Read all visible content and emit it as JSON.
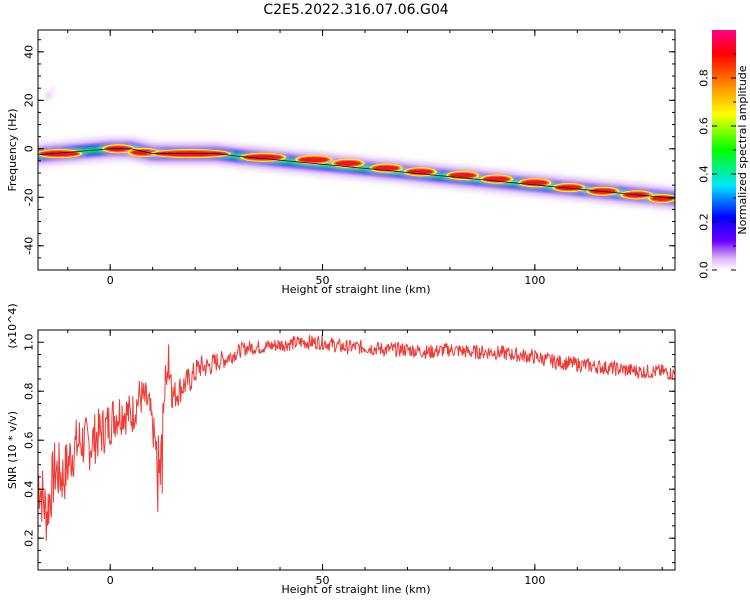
{
  "title": "C2E5.2022.316.07.06.G04",
  "chart_data": [
    {
      "type": "heatmap",
      "xlabel": "Height of straight line (km)",
      "ylabel": "Frequency (Hz)",
      "xlim": [
        -17,
        133
      ],
      "ylim": [
        -50,
        49
      ],
      "xticks": [
        0,
        50,
        100
      ],
      "yticks": [
        -40,
        -20,
        0,
        20,
        40
      ],
      "ridge_line": {
        "x": [
          -17,
          0,
          5,
          10,
          25,
          30,
          133
        ],
        "y": [
          -2.5,
          0,
          0,
          -2,
          -2,
          -3,
          -20.5
        ]
      },
      "spectral_peaks": [
        {
          "x": -12,
          "y": -2,
          "width": 8
        },
        {
          "x": 2,
          "y": 0,
          "width": 5
        },
        {
          "x": 8,
          "y": -1.5,
          "width": 5
        },
        {
          "x": 19,
          "y": -2,
          "width": 16
        },
        {
          "x": 36,
          "y": -3.5,
          "width": 8
        },
        {
          "x": 48,
          "y": -4.5,
          "width": 6
        },
        {
          "x": 56,
          "y": -6,
          "width": 5
        },
        {
          "x": 65,
          "y": -8,
          "width": 5
        },
        {
          "x": 73,
          "y": -9.5,
          "width": 5
        },
        {
          "x": 83,
          "y": -11,
          "width": 5
        },
        {
          "x": 91,
          "y": -12.5,
          "width": 5
        },
        {
          "x": 100,
          "y": -14,
          "width": 5
        },
        {
          "x": 108,
          "y": -16,
          "width": 5
        },
        {
          "x": 116,
          "y": -17.5,
          "width": 5
        },
        {
          "x": 124,
          "y": -19,
          "width": 5
        },
        {
          "x": 130,
          "y": -20.5,
          "width": 4
        }
      ],
      "colorbar": {
        "label": "Normalized spectral amplitude",
        "range": [
          0,
          1
        ],
        "ticks": [
          0.0,
          0.2,
          0.4,
          0.6,
          0.8
        ],
        "tick_labels": [
          "0.0",
          "0.2",
          "0.4",
          "0.6",
          "0.8"
        ],
        "colors": [
          "#ffffff",
          "#d9b3f2",
          "#6a00ff",
          "#0000ff",
          "#00e5ff",
          "#00ff00",
          "#ffff00",
          "#ff8000",
          "#ff0000",
          "#ff0088"
        ]
      }
    },
    {
      "type": "line",
      "xlabel": "Height of straight line (km)",
      "ylabel": "SNR (10 * v/v)",
      "scale_note": "(x10^4)",
      "xlim": [
        -17,
        133
      ],
      "ylim": [
        0.07,
        1.05
      ],
      "xticks": [
        0,
        50,
        100
      ],
      "yticks": [
        0.2,
        0.4,
        0.6,
        0.8,
        1.0
      ],
      "ytick_labels": [
        "0.2",
        "0.4",
        "0.6",
        "0.8",
        "1.0"
      ],
      "line_color": "#f03a36",
      "series": [
        {
          "x": [
            -17,
            -15,
            -13,
            -11,
            -9,
            -7,
            -5,
            -3,
            -1,
            1,
            3,
            5,
            7,
            9,
            11,
            13,
            15,
            17,
            19,
            21,
            23,
            25,
            27,
            29,
            31,
            33,
            35,
            40,
            45,
            50,
            55,
            60,
            65,
            70,
            75,
            80,
            85,
            90,
            95,
            100,
            105,
            110,
            115,
            120,
            125,
            130,
            133
          ],
          "values": [
            0.45,
            0.3,
            0.48,
            0.45,
            0.55,
            0.6,
            0.58,
            0.62,
            0.65,
            0.7,
            0.72,
            0.7,
            0.78,
            0.75,
            0.55,
            0.85,
            0.78,
            0.82,
            0.85,
            0.9,
            0.9,
            0.92,
            0.93,
            0.95,
            0.97,
            0.98,
            0.98,
            0.99,
            1.0,
            1.0,
            0.98,
            0.98,
            0.97,
            0.97,
            0.96,
            0.97,
            0.96,
            0.96,
            0.95,
            0.94,
            0.92,
            0.91,
            0.9,
            0.89,
            0.88,
            0.88,
            0.87
          ]
        }
      ]
    }
  ]
}
